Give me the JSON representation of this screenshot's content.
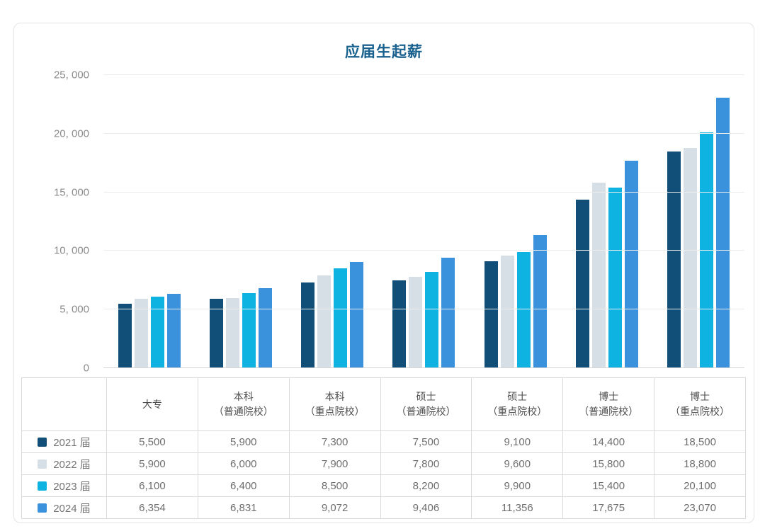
{
  "chart_data": {
    "type": "bar",
    "title": "应届生起薪",
    "categories": [
      "大专",
      "本科（普通院校）",
      "本科（重点院校）",
      "硕士（普通院校）",
      "硕士（重点院校）",
      "博士（普通院校）",
      "博士（重点院校）"
    ],
    "series": [
      {
        "name": "2021 届",
        "color": "#114E78",
        "values": [
          5500,
          5900,
          7300,
          7500,
          9100,
          14400,
          18500
        ]
      },
      {
        "name": "2022 届",
        "color": "#D6DFE6",
        "values": [
          5900,
          6000,
          7900,
          7800,
          9600,
          15800,
          18800
        ]
      },
      {
        "name": "2023 届",
        "color": "#0FB3E2",
        "values": [
          6100,
          6400,
          8500,
          8200,
          9900,
          15400,
          20100
        ]
      },
      {
        "name": "2024 届",
        "color": "#3A91DC",
        "values": [
          6354,
          6831,
          9072,
          9406,
          11356,
          17675,
          23070
        ]
      }
    ],
    "ylim": [
      0,
      25000
    ],
    "ytick_interval": 5000,
    "ytick_labels": [
      "0",
      "5, 000",
      "10, 000",
      "15, 000",
      "20, 000",
      "25, 000"
    ],
    "grid": true,
    "legend_position": "table-first-column"
  },
  "table": {
    "corner": "",
    "columns": [
      "大专",
      "本科\n（普通院校）",
      "本科\n（重点院校）",
      "硕士\n（普通院校）",
      "硕士\n（重点院校）",
      "博士\n（普通院校）",
      "博士\n（重点院校）"
    ],
    "rows": [
      {
        "label": "2021 届",
        "color": "#114E78",
        "cells": [
          "5,500",
          "5,900",
          "7,300",
          "7,500",
          "9,100",
          "14,400",
          "18,500"
        ]
      },
      {
        "label": "2022 届",
        "color": "#D6DFE6",
        "cells": [
          "5,900",
          "6,000",
          "7,900",
          "7,800",
          "9,600",
          "15,800",
          "18,800"
        ]
      },
      {
        "label": "2023 届",
        "color": "#0FB3E2",
        "cells": [
          "6,100",
          "6,400",
          "8,500",
          "8,200",
          "9,900",
          "15,400",
          "20,100"
        ]
      },
      {
        "label": "2024 届",
        "color": "#3A91DC",
        "cells": [
          "6,354",
          "6,831",
          "9,072",
          "9,406",
          "11,356",
          "17,675",
          "23,070"
        ]
      }
    ]
  },
  "colors": {
    "title": "#19618E",
    "gridline": "#ECECEC",
    "baseline": "#D5D5D5",
    "axis_label": "#8B8B8B",
    "table_border": "#DADADA",
    "card_border": "#E4E4E4"
  }
}
